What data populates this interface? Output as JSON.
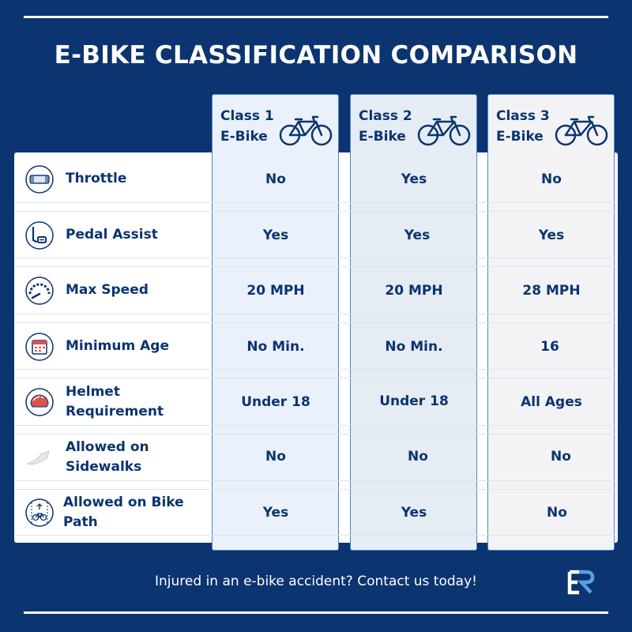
{
  "title": "E-BIKE CLASSIFICATION COMPARISON",
  "columns": [
    {
      "line1": "Class 1",
      "line2": "E-Bike",
      "icon": "bicycle-icon"
    },
    {
      "line1": "Class 2",
      "line2": "E-Bike",
      "icon": "bicycle-icon"
    },
    {
      "line1": "Class 3",
      "line2": "E-Bike",
      "icon": "bicycle-icon"
    }
  ],
  "rows": [
    {
      "label": "Throttle",
      "icon": "throttle-icon",
      "values": [
        "No",
        "Yes",
        "No"
      ]
    },
    {
      "label": "Pedal Assist",
      "icon": "pedal-icon",
      "values": [
        "Yes",
        "Yes",
        "Yes"
      ]
    },
    {
      "label": "Max Speed",
      "icon": "speedometer-icon",
      "values": [
        "20 MPH",
        "20 MPH",
        "28 MPH"
      ]
    },
    {
      "label": "Minimum Age",
      "icon": "calendar-icon",
      "values": [
        "No Min.",
        "No Min.",
        "16"
      ]
    },
    {
      "label_line1": "Helmet",
      "label_line2": "Requirement",
      "icon": "helmet-icon",
      "values": [
        "Under 18",
        "Under 18",
        "All Ages"
      ]
    },
    {
      "label_line1": "Allowed on",
      "label_line2": "Sidewalks",
      "icon": "sidewalk-icon",
      "values": [
        "No",
        "No",
        "No"
      ]
    },
    {
      "label_line1": "Allowed on Bike",
      "label_line2": "Path",
      "icon": "bike-path-icon",
      "values": [
        "Yes",
        "Yes",
        "No"
      ]
    }
  ],
  "footer": "Injured in an e-bike accident? Contact us today!",
  "logo_text": "ER",
  "colors": {
    "background": "#0b3470",
    "accent": "#4a86c5",
    "text": "#0b3470"
  }
}
